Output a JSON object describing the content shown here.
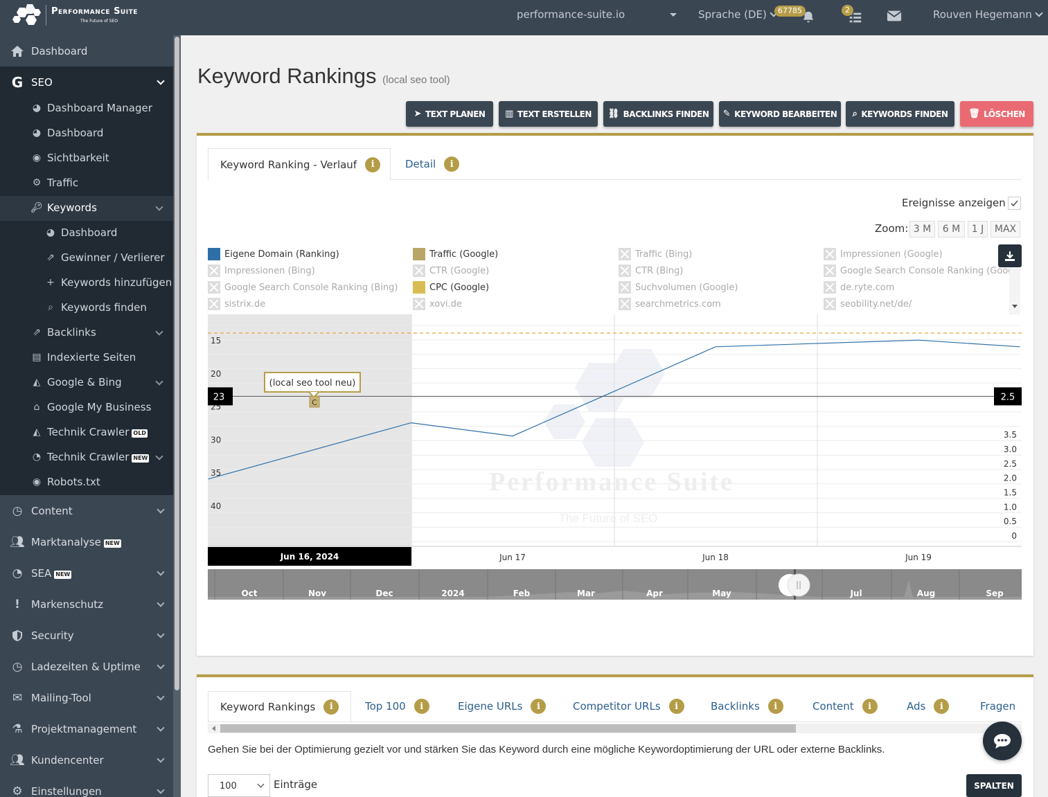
{
  "topbar": {
    "logo_name": "Performance Suite",
    "logo_tagline": "The Future of SEO",
    "domain": "performance-suite.io",
    "language": "Sprache (DE)",
    "notif_count": "67785",
    "task_count": "2",
    "user": "Rouven Hegemann"
  },
  "sidebar": {
    "dashboard": "Dashboard",
    "seo": "SEO",
    "seo_items": [
      "Dashboard Manager",
      "Dashboard",
      "Sichtbarkeit",
      "Traffic",
      "Keywords"
    ],
    "keyword_items": [
      "Dashboard",
      "Gewinner / Verlierer",
      "Keywords hinzufügen",
      "Keywords finden"
    ],
    "seo_items2": [
      "Backlinks",
      "Indexierte Seiten",
      "Google & Bing",
      "Google My Business",
      "Technik Crawler",
      "Technik Crawler",
      "Robots.txt"
    ],
    "tag_old": "OLD",
    "tag_new": "NEW",
    "main_items": [
      "Content",
      "Marktanalyse",
      "SEA",
      "Markenschutz",
      "Security",
      "Ladezeiten & Uptime",
      "Mailing-Tool",
      "Projektmanagement",
      "Kundencenter",
      "Einstellungen"
    ]
  },
  "page": {
    "title": "Keyword Rankings",
    "subtitle": "(local seo tool)"
  },
  "buttons": {
    "text_planen": "TEXT PLANEN",
    "text_erstellen": "TEXT ERSTELLEN",
    "backlinks_finden": "BACKLINKS FINDEN",
    "keyword_bearbeiten": "KEYWORD BEARBEITEN",
    "keywords_finden": "KEYWORDS FINDEN",
    "loeschen": "LÖSCHEN"
  },
  "chart_tabs": {
    "verlauf": "Keyword Ranking - Verlauf",
    "detail": "Detail",
    "info": "i"
  },
  "chart_controls": {
    "events_label": "Ereignisse anzeigen",
    "zoom_label": "Zoom:",
    "zoom_options": [
      "3 M",
      "6 M",
      "1 J",
      "MAX"
    ]
  },
  "legend": [
    {
      "label": "Eigene Domain (Ranking)",
      "active": true,
      "color": "#2f6fa8"
    },
    {
      "label": "Traffic (Google)",
      "active": true,
      "color": "#b9a568"
    },
    {
      "label": "Traffic (Bing)",
      "active": false
    },
    {
      "label": "Impressionen (Google)",
      "active": false
    },
    {
      "label": "Impressionen (Bing)",
      "active": false
    },
    {
      "label": "CTR (Google)",
      "active": false
    },
    {
      "label": "CTR (Bing)",
      "active": false
    },
    {
      "label": "Google Search Console Ranking (Googl",
      "active": false
    },
    {
      "label": "Google Search Console Ranking (Bing)",
      "active": false
    },
    {
      "label": "CPC (Google)",
      "active": true,
      "color": "#d8bd54"
    },
    {
      "label": "Suchvolumen (Google)",
      "active": false
    },
    {
      "label": "de.ryte.com",
      "active": false
    },
    {
      "label": "sistrix.de",
      "active": false
    },
    {
      "label": "xovi.de",
      "active": false
    },
    {
      "label": "searchmetrics.com",
      "active": false
    },
    {
      "label": "seobility.net/de/",
      "active": false
    }
  ],
  "chart_data": {
    "type": "line",
    "x": [
      "Jun 16, 2024",
      "Jun 17",
      "Jun 18",
      "Jun 19"
    ],
    "y_left_ticks": [
      "15",
      "20",
      "25",
      "30",
      "35",
      "40"
    ],
    "y_right_ticks": [
      "3.5",
      "3.0",
      "2.5",
      "2.0",
      "1.5",
      "1.0",
      "0.5",
      "0"
    ],
    "series": [
      {
        "name": "Eigene Domain (Ranking)",
        "axis": "left-reversed",
        "points": [
          [
            15.5,
            35.5
          ],
          [
            16.5,
            27
          ],
          [
            17.0,
            29
          ],
          [
            18.0,
            15.5
          ],
          [
            19.0,
            14.5
          ],
          [
            19.5,
            15.5
          ]
        ]
      },
      {
        "name": "Traffic (Google)",
        "axis": "right",
        "points": []
      },
      {
        "name": "CPC (Google)",
        "axis": "right",
        "style": "dashed",
        "value": 3.5
      }
    ],
    "crosshair": {
      "left": "23",
      "right": "2.5",
      "date": "Jun 16, 2024"
    },
    "event": {
      "label": "(local seo tool neu)",
      "marker": "C"
    },
    "navigator_labels": [
      "Oct",
      "Nov",
      "Dec",
      "2024",
      "Feb",
      "Mar",
      "Apr",
      "May",
      "Jul",
      "Aug",
      "Sep"
    ],
    "watermark": "Performance Suite",
    "watermark_sub": "The Future of SEO"
  },
  "bottom_tabs": [
    "Keyword Rankings",
    "Top 100",
    "Eigene URLs",
    "Competitor URLs",
    "Backlinks",
    "Content",
    "Ads",
    "Fragen"
  ],
  "bottom": {
    "hint": "Gehen Sie bei der Optimierung gezielt vor und stärken Sie das Keyword durch eine mögliche Keywordoptimierung der URL oder externe Backlinks.",
    "entries_value": "100",
    "entries_label": "Einträge",
    "columns_button": "SPALTEN"
  }
}
